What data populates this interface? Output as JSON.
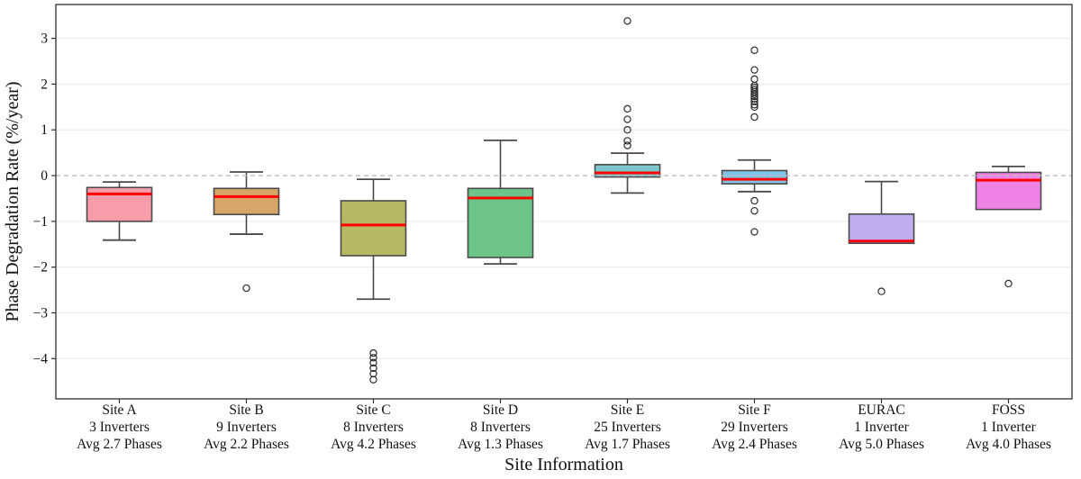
{
  "chart_data": {
    "type": "boxplot",
    "title": "",
    "xlabel": "Site Information",
    "ylabel": "Phase Degradation Rate (%/year)",
    "ylim": [
      -4.88,
      3.74
    ],
    "yticks": [
      3,
      2,
      1,
      0,
      -1,
      -2,
      -3,
      -4
    ],
    "grid": "horizontal",
    "zero_reference_line": {
      "value": 0,
      "style": "dashed",
      "color": "#bdbdbd"
    },
    "style": {
      "median_color": "#ff0000",
      "box_border_color": "#4a4a4a",
      "axis_color": "#2f2f2f",
      "grid_color": "#ededed",
      "background": "#ffffff",
      "text_color": "#111111"
    },
    "sites": [
      {
        "site": "Site A",
        "inverters": "3 Inverters",
        "phases": "Avg 2.7 Phases",
        "color": "#F89CAB",
        "whislo": -1.41,
        "q1": -1.0,
        "med": -0.4,
        "q3": -0.26,
        "whishi": -0.14,
        "outliers": []
      },
      {
        "site": "Site B",
        "inverters": "9 Inverters",
        "phases": "Avg 2.2 Phases",
        "color": "#D5A667",
        "whislo": -1.28,
        "q1": -0.85,
        "med": -0.46,
        "q3": -0.28,
        "whishi": 0.08,
        "outliers": [
          -2.46
        ]
      },
      {
        "site": "Site C",
        "inverters": "8 Inverters",
        "phases": "Avg 4.2 Phases",
        "color": "#B6B862",
        "whislo": -2.7,
        "q1": -1.75,
        "med": -1.08,
        "q3": -0.55,
        "whishi": -0.08,
        "outliers": [
          -3.88,
          -3.98,
          -4.09,
          -4.21,
          -4.33,
          -4.46
        ]
      },
      {
        "site": "Site D",
        "inverters": "8 Inverters",
        "phases": "Avg 1.3 Phases",
        "color": "#6CC489",
        "whislo": -1.93,
        "q1": -1.79,
        "med": -0.49,
        "q3": -0.28,
        "whishi": 0.77,
        "outliers": []
      },
      {
        "site": "Site E",
        "inverters": "25 Inverters",
        "phases": "Avg 1.7 Phases",
        "color": "#7CC8CE",
        "whislo": -0.38,
        "q1": -0.03,
        "med": 0.06,
        "q3": 0.24,
        "whishi": 0.49,
        "outliers": [
          3.38,
          1.46,
          1.23,
          1.0,
          0.76,
          0.66
        ]
      },
      {
        "site": "Site F",
        "inverters": "29 Inverters",
        "phases": "Avg 2.4 Phases",
        "color": "#82C3E8",
        "whislo": -0.35,
        "q1": -0.18,
        "med": -0.08,
        "q3": 0.11,
        "whishi": 0.34,
        "outliers": [
          2.74,
          2.31,
          2.11,
          1.97,
          1.93,
          1.88,
          1.83,
          1.78,
          1.73,
          1.68,
          1.62,
          1.55,
          1.5,
          1.28,
          -0.55,
          -0.77,
          -1.23
        ]
      },
      {
        "site": "EURAC",
        "inverters": "1 Inverter",
        "phases": "Avg 5.0 Phases",
        "color": "#C0ADF0",
        "whislo": -1.48,
        "q1": -1.48,
        "med": -1.43,
        "q3": -0.84,
        "whishi": -0.13,
        "outliers": [
          -2.53
        ]
      },
      {
        "site": "FOSS",
        "inverters": "1 Inverter",
        "phases": "Avg 4.0 Phases",
        "color": "#EF82E5",
        "whislo": -0.74,
        "q1": -0.74,
        "med": -0.1,
        "q3": 0.07,
        "whishi": 0.2,
        "outliers": [
          -2.36
        ]
      }
    ]
  }
}
